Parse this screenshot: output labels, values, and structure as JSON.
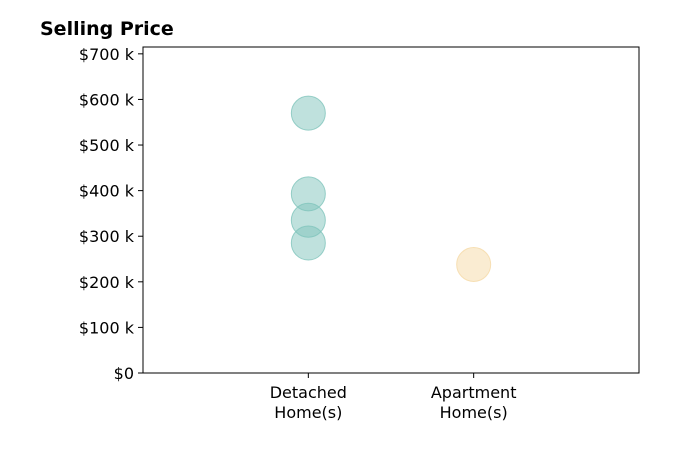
{
  "chart_data": {
    "type": "scatter",
    "title": "Selling Price",
    "xlabel": "",
    "ylabel": "",
    "categories": [
      {
        "lines": [
          "Detached",
          "Home(s)"
        ]
      },
      {
        "lines": [
          "Apartment",
          "Home(s)"
        ]
      }
    ],
    "y_ticks": [
      {
        "value": 0,
        "label": "$0"
      },
      {
        "value": 100000,
        "label": "$100 k"
      },
      {
        "value": 200000,
        "label": "$200 k"
      },
      {
        "value": 300000,
        "label": "$300 k"
      },
      {
        "value": 400000,
        "label": "$400 k"
      },
      {
        "value": 500000,
        "label": "$500 k"
      },
      {
        "value": 600000,
        "label": "$600 k"
      },
      {
        "value": 700000,
        "label": "$700 k"
      }
    ],
    "ylim": [
      0,
      715000
    ],
    "xlim": [
      -1,
      2
    ],
    "grid": false,
    "series": [
      {
        "color": "#7fc4bb",
        "category_index": 0,
        "values": [
          570000,
          393000,
          335000,
          285000
        ]
      },
      {
        "color": "#f5d9a6",
        "category_index": 1,
        "values": [
          238000
        ]
      }
    ]
  }
}
